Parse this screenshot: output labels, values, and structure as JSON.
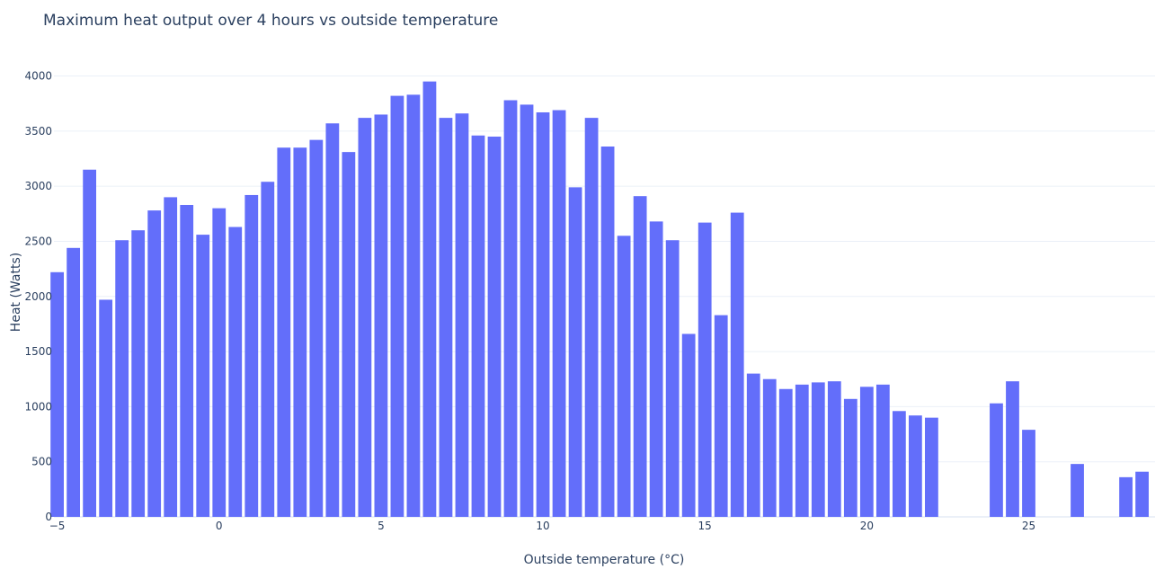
{
  "chart_data": {
    "type": "bar",
    "title": "Maximum heat output over 4 hours vs outside temperature",
    "xlabel": "Outside temperature (°C)",
    "ylabel": "Heat (Watts)",
    "xlim": [
      -5.1,
      28.9
    ],
    "ylim": [
      0,
      4200
    ],
    "x_ticks": [
      -5,
      0,
      5,
      10,
      15,
      20,
      25
    ],
    "x_tick_labels": [
      "−5",
      "0",
      "5",
      "10",
      "15",
      "20",
      "25"
    ],
    "y_ticks": [
      0,
      500,
      1000,
      1500,
      2000,
      2500,
      3000,
      3500,
      4000
    ],
    "y_tick_labels": [
      "0",
      "500",
      "1000",
      "1500",
      "2000",
      "2500",
      "3000",
      "3500",
      "4000"
    ],
    "grid": true,
    "bar_color": "#636efa",
    "x": [
      -5,
      -4.5,
      -4,
      -3.5,
      -3,
      -2.5,
      -2,
      -1.5,
      -1,
      -0.5,
      0,
      0.5,
      1,
      1.5,
      2,
      2.5,
      3,
      3.5,
      4,
      4.5,
      5,
      5.5,
      6,
      6.5,
      7,
      7.5,
      8,
      8.5,
      9,
      9.5,
      10,
      10.5,
      11,
      11.5,
      12,
      12.5,
      13,
      13.5,
      14,
      14.5,
      15,
      15.5,
      16,
      16.5,
      17,
      17.5,
      18,
      18.5,
      19,
      19.5,
      20,
      20.5,
      21,
      21.5,
      22,
      22.5,
      23,
      23.5,
      24,
      24.5,
      25,
      25.5,
      26,
      26.5,
      27,
      27.5,
      28,
      28.5
    ],
    "values": [
      2220,
      2440,
      3150,
      1970,
      2510,
      2600,
      2780,
      2900,
      2830,
      2560,
      2800,
      2630,
      2920,
      3040,
      3350,
      3350,
      3420,
      3570,
      3310,
      3620,
      3650,
      3820,
      3830,
      3950,
      3620,
      3660,
      3460,
      3450,
      3780,
      3740,
      3670,
      3690,
      2990,
      3620,
      3360,
      2550,
      2910,
      2680,
      2510,
      1660,
      2670,
      1830,
      2760,
      1300,
      1250,
      1160,
      1200,
      1220,
      1230,
      1070,
      1180,
      1200,
      960,
      920,
      900,
      0,
      0,
      0,
      1030,
      1230,
      790,
      0,
      0,
      480,
      0,
      0,
      360,
      410
    ]
  }
}
